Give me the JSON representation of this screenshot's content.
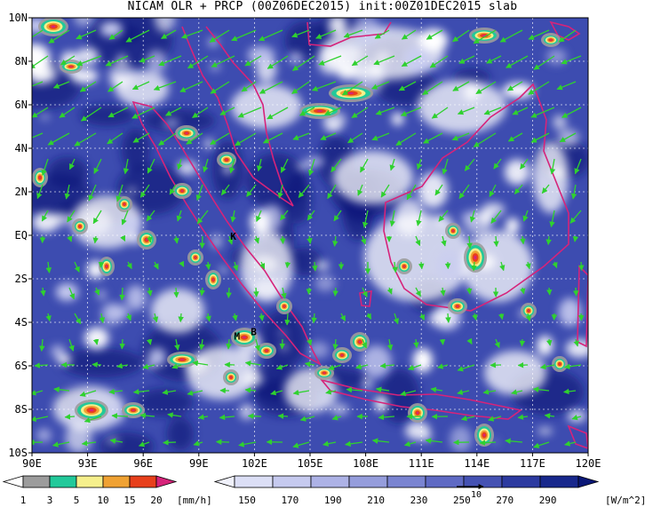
{
  "title": "NICAM OLR + PRCP (00Z06DEC2015) init:00Z01DEC2015 slab",
  "colors": {
    "olr_dark": "#0b1a7a",
    "olr_mid": "#4453b8",
    "olr_light": "#c9cdf0",
    "cloud": "#ffffff",
    "coast": "#d6237a",
    "wind": "#2fd12f",
    "grid": "#ffffff"
  },
  "map": {
    "lon_range": [
      90,
      120
    ],
    "lat_range": [
      -10,
      10
    ],
    "x_ticks": [
      "90E",
      "93E",
      "96E",
      "99E",
      "102E",
      "105E",
      "108E",
      "111E",
      "114E",
      "117E",
      "120E"
    ],
    "y_ticks": [
      "10N",
      "8N",
      "6N",
      "4N",
      "2N",
      "EQ",
      "2S",
      "4S",
      "6S",
      "8S",
      "10S"
    ],
    "labels": [
      {
        "text": "K",
        "lon": 100.7,
        "lat": -0.2
      },
      {
        "text": "M",
        "lon": 100.9,
        "lat": -4.8
      },
      {
        "text": "B",
        "lon": 101.8,
        "lat": -4.6
      }
    ]
  },
  "prcp_bar": {
    "labels": [
      "1",
      "3",
      "5",
      "10",
      "15",
      "20"
    ],
    "unit": "[mm/h]",
    "colors": [
      "#9c9c9c",
      "#22c99a",
      "#f6f08c",
      "#f0a233",
      "#e8401c",
      "#d6237a"
    ]
  },
  "olr_bar": {
    "labels": [
      "150",
      "170",
      "190",
      "210",
      "230",
      "250",
      "270",
      "290"
    ],
    "unit": "[W/m^2]",
    "colors": [
      "#f0f1fb",
      "#dcdff6",
      "#c6caef",
      "#adb2e6",
      "#959ddc",
      "#7a84d1",
      "#5f6ac4",
      "#4552b3",
      "#2c3aa0",
      "#18288c",
      "#0a1777"
    ],
    "vector_label": "10"
  }
}
